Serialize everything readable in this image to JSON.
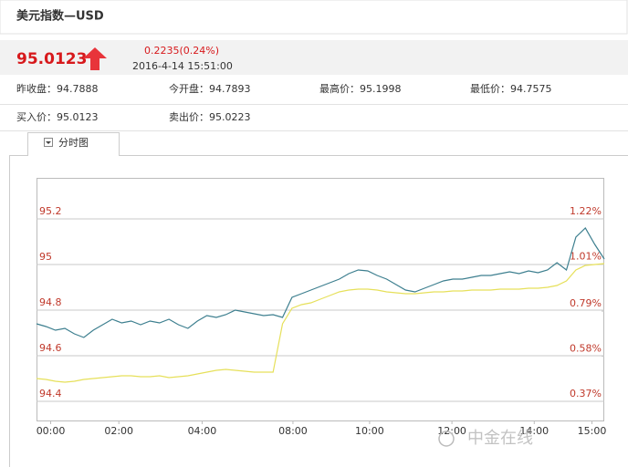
{
  "header": {
    "title": "美元指数—USD",
    "price": "95.0123",
    "change": "0.2235(0.24%)",
    "time": "2016-4-14 15:51:00",
    "stats": [
      "昨收盘：94.7888",
      "今开盘：94.7893",
      "最高价：95.1998",
      "最低价：94.7575"
    ],
    "quotes": [
      "买入价：95.0123",
      "卖出价：95.0223"
    ]
  },
  "tab": {
    "label": "分时图"
  },
  "watermark": "中金在线",
  "chart_data": {
    "type": "line",
    "x": [
      0,
      1,
      2,
      3,
      4,
      5,
      6,
      7,
      8,
      9,
      10,
      11,
      12,
      13,
      14,
      15,
      16,
      17,
      18,
      19,
      20,
      21,
      22,
      23,
      24,
      25,
      26,
      27,
      28,
      29,
      30,
      31,
      32,
      33,
      34,
      35,
      36,
      37,
      38,
      39,
      40,
      41,
      42,
      43,
      44,
      45,
      46,
      47,
      48,
      49,
      50,
      51,
      52,
      53,
      54,
      55,
      56,
      57,
      58,
      59,
      60
    ],
    "series": [
      {
        "color": "#3d7f8f",
        "values": [
          94.74,
          94.728,
          94.712,
          94.72,
          94.696,
          94.68,
          94.712,
          94.736,
          94.76,
          94.744,
          94.752,
          94.736,
          94.752,
          94.744,
          94.76,
          94.736,
          94.72,
          94.752,
          94.776,
          94.768,
          94.78,
          94.8,
          94.792,
          94.784,
          94.776,
          94.78,
          94.768,
          94.856,
          94.872,
          94.888,
          94.904,
          94.92,
          94.936,
          94.96,
          94.976,
          94.972,
          94.952,
          94.936,
          94.912,
          94.888,
          94.88,
          94.896,
          94.912,
          94.928,
          94.936,
          94.936,
          94.944,
          94.952,
          94.952,
          94.96,
          94.968,
          94.96,
          94.972,
          94.964,
          94.976,
          95.008,
          94.976,
          95.12,
          95.16,
          95.088,
          95.024
        ]
      },
      {
        "color": "#e6e05a",
        "values": [
          94.5,
          94.496,
          94.488,
          94.484,
          94.488,
          94.496,
          94.5,
          94.504,
          94.508,
          94.512,
          94.512,
          94.508,
          94.508,
          94.512,
          94.504,
          94.508,
          94.512,
          94.52,
          94.528,
          94.536,
          94.54,
          94.536,
          94.532,
          94.528,
          94.528,
          94.528,
          94.74,
          94.808,
          94.824,
          94.832,
          94.848,
          94.864,
          94.88,
          94.888,
          94.892,
          94.892,
          94.888,
          94.88,
          94.876,
          94.872,
          94.872,
          94.876,
          94.88,
          94.88,
          94.884,
          94.884,
          94.888,
          94.888,
          94.888,
          94.892,
          94.892,
          94.892,
          94.896,
          94.896,
          94.9,
          94.908,
          94.928,
          94.976,
          94.996,
          95,
          95.004
        ]
      }
    ],
    "xlim": [
      0,
      60
    ],
    "xticks": [
      {
        "value": 1.5,
        "label": "00:00"
      },
      {
        "value": 8.7,
        "label": "02:00"
      },
      {
        "value": 17.5,
        "label": "04:00"
      },
      {
        "value": 27.1,
        "label": "08:00"
      },
      {
        "value": 35.2,
        "label": "10:00"
      },
      {
        "value": 43.9,
        "label": "12:00"
      },
      {
        "value": 52.6,
        "label": "14:00"
      },
      {
        "value": 58.7,
        "label": "15:00"
      }
    ],
    "ylim": [
      94.312,
      95.38
    ],
    "yticks": [
      95.2,
      95,
      94.8,
      94.6,
      94.4
    ],
    "y2lim": [
      0.2765,
      1.411
    ],
    "y2ticks": [
      {
        "value": 1.22,
        "label": "1.22%"
      },
      {
        "value": 1.01,
        "label": "1.01%"
      },
      {
        "value": 0.79,
        "label": "0.79%"
      },
      {
        "value": 0.58,
        "label": "0.58%"
      },
      {
        "value": 0.37,
        "label": "0.37%"
      }
    ],
    "grid": true
  }
}
